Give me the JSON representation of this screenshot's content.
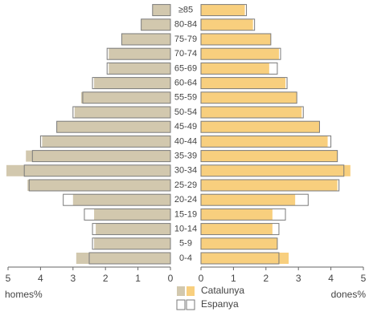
{
  "chart_data": {
    "type": "pyramid",
    "categories": [
      "0-4",
      "5-9",
      "10-14",
      "15-19",
      "20-24",
      "25-29",
      "30-34",
      "35-39",
      "40-44",
      "45-49",
      "50-54",
      "55-59",
      "60-64",
      "65-69",
      "70-74",
      "75-79",
      "80-84",
      "≥85"
    ],
    "left_label": "homes%",
    "right_label": "dones%",
    "xlim": [
      0,
      5
    ],
    "xticks": [
      0,
      1,
      2,
      3,
      4,
      5
    ],
    "series": [
      {
        "name": "Catalunya",
        "fill": true,
        "colors": [
          "#d2c8ae",
          "#f8cf7e"
        ],
        "homes": [
          2.9,
          2.35,
          2.3,
          2.35,
          3.0,
          4.4,
          5.05,
          4.45,
          3.95,
          3.5,
          2.95,
          2.75,
          2.35,
          1.9,
          1.9,
          1.5,
          0.9,
          0.55
        ],
        "dones": [
          2.7,
          2.35,
          2.2,
          2.2,
          2.9,
          4.2,
          4.6,
          4.2,
          3.9,
          3.65,
          3.1,
          2.95,
          2.6,
          2.1,
          2.4,
          2.15,
          1.6,
          1.35
        ]
      },
      {
        "name": "Espanya",
        "fill": false,
        "colors": [
          "#7a7a7a",
          "#7a7a7a"
        ],
        "homes": [
          2.5,
          2.4,
          2.4,
          2.65,
          3.3,
          4.35,
          4.5,
          4.25,
          4.0,
          3.5,
          3.0,
          2.7,
          2.4,
          1.95,
          1.95,
          1.5,
          0.9,
          0.55
        ],
        "dones": [
          2.4,
          2.35,
          2.4,
          2.6,
          3.3,
          4.25,
          4.4,
          4.2,
          4.0,
          3.65,
          3.15,
          2.95,
          2.65,
          2.35,
          2.45,
          2.15,
          1.65,
          1.4
        ]
      }
    ]
  }
}
